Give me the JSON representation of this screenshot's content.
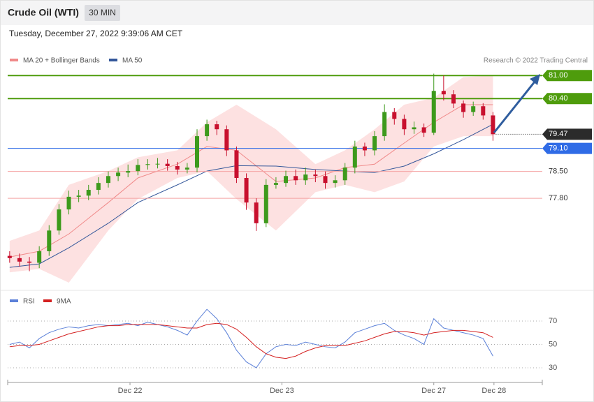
{
  "header": {
    "title": "Crude Oil (WTI)",
    "timeframe": "30 MIN",
    "timestamp": "Tuesday, December 27, 2022 9:39:06 AM CET"
  },
  "chart_data": [
    {
      "type": "candlestick",
      "annotation": "Research © 2022 Trading Central",
      "up_color": "#3d9a1c",
      "down_color": "#c8102e",
      "xlim": [
        -0.2,
        54
      ],
      "ylim": [
        75.51,
        81.15
      ],
      "open": [
        76.3,
        76.24,
        76.15,
        76.12,
        76.42,
        76.96,
        77.51,
        77.84,
        77.87,
        78.02,
        78.2,
        78.38,
        78.47,
        78.51,
        78.67,
        78.69,
        78.7,
        78.64,
        78.55,
        78.6,
        79.42,
        79.73,
        79.6,
        79.05,
        78.33,
        77.69,
        77.15,
        78.15,
        78.2,
        78.38,
        78.27,
        78.42,
        78.38,
        78.2,
        78.27,
        78.6,
        79.15,
        79.05,
        79.42,
        80.05,
        79.87,
        79.6,
        79.65,
        79.51,
        80.6,
        80.51,
        80.27,
        80.05,
        80.2,
        79.96
      ],
      "high": [
        76.42,
        76.36,
        76.27,
        76.55,
        77.1,
        77.65,
        78.0,
        78.02,
        78.15,
        78.35,
        78.5,
        78.6,
        78.68,
        78.82,
        78.82,
        78.85,
        78.82,
        78.75,
        78.72,
        79.6,
        79.85,
        79.82,
        79.7,
        79.15,
        78.45,
        77.8,
        78.3,
        78.35,
        78.52,
        78.55,
        78.6,
        78.55,
        78.5,
        78.4,
        78.72,
        79.3,
        79.25,
        79.55,
        80.25,
        80.15,
        79.98,
        79.8,
        79.75,
        81.05,
        81.0,
        80.62,
        80.35,
        80.32,
        80.28,
        80.05
      ],
      "low": [
        76.12,
        76.02,
        75.9,
        75.98,
        76.3,
        76.85,
        77.38,
        77.7,
        77.75,
        77.9,
        78.08,
        78.25,
        78.35,
        78.4,
        78.55,
        78.58,
        78.52,
        78.42,
        78.45,
        78.48,
        79.3,
        79.45,
        78.9,
        78.2,
        77.5,
        76.95,
        77.05,
        78.05,
        78.1,
        78.15,
        78.15,
        78.22,
        78.05,
        78.08,
        78.15,
        78.45,
        78.9,
        78.92,
        79.3,
        79.72,
        79.45,
        79.48,
        79.4,
        79.45,
        80.35,
        80.15,
        79.9,
        79.95,
        79.85,
        79.3
      ],
      "close": [
        76.24,
        76.15,
        76.12,
        76.42,
        76.96,
        77.51,
        77.84,
        77.87,
        78.02,
        78.2,
        78.38,
        78.47,
        78.51,
        78.67,
        78.69,
        78.7,
        78.64,
        78.55,
        78.6,
        79.42,
        79.73,
        79.6,
        79.05,
        78.33,
        77.69,
        77.15,
        78.15,
        78.2,
        78.38,
        78.27,
        78.42,
        78.38,
        78.2,
        78.27,
        78.6,
        79.15,
        79.05,
        79.42,
        80.05,
        79.87,
        79.6,
        79.65,
        79.51,
        80.6,
        80.51,
        80.27,
        80.05,
        80.2,
        79.96,
        79.47
      ],
      "overlay_x": [
        0,
        3,
        6,
        10,
        13,
        17,
        20,
        23,
        27,
        31,
        34,
        37,
        40,
        43,
        46,
        49
      ],
      "bands": {
        "name": "MA 20 + Bollinger Bands",
        "color": "#f08a8a",
        "fill": "#fde1e1",
        "upper": [
          76.69,
          76.96,
          78.15,
          78.51,
          78.87,
          79.05,
          79.78,
          80.24,
          79.6,
          78.69,
          79.05,
          79.6,
          80.24,
          80.42,
          80.96,
          81.0
        ],
        "middle": [
          76.27,
          76.42,
          76.87,
          77.69,
          78.33,
          78.69,
          79.15,
          79.05,
          78.24,
          78.33,
          78.6,
          78.69,
          79.24,
          79.78,
          80.24,
          80.24
        ],
        "lower": [
          75.87,
          75.96,
          75.6,
          76.96,
          77.78,
          78.33,
          78.51,
          77.78,
          76.96,
          77.96,
          78.15,
          77.96,
          78.24,
          79.15,
          79.42,
          79.42
        ]
      },
      "ma50": {
        "name": "MA 50",
        "color": "#34579a",
        "values": [
          76.0,
          76.09,
          76.51,
          77.15,
          77.69,
          78.15,
          78.51,
          78.65,
          78.64,
          78.55,
          78.51,
          78.47,
          78.64,
          78.96,
          79.33,
          79.73
        ]
      },
      "levels": [
        {
          "value": 81,
          "label": "81.00",
          "color": "#4e9c0c",
          "style": "tag"
        },
        {
          "value": 80.4,
          "label": "80.40",
          "color": "#4e9c0c",
          "style": "tag"
        },
        {
          "value": 79.47,
          "label": "79.47",
          "color": "#2b2b2b",
          "style": "last"
        },
        {
          "value": 79.1,
          "label": "79.10",
          "color": "#2f6be6",
          "style": "tag"
        },
        {
          "value": 78.5,
          "label": "78.50",
          "color": "#e02020",
          "style": "text"
        },
        {
          "value": 77.8,
          "label": "77.80",
          "color": "#e02020",
          "style": "text"
        }
      ]
    },
    {
      "type": "line",
      "xlim": [
        -0.2,
        54
      ],
      "ylim": [
        19.25,
        81.9
      ],
      "yticks": [
        30,
        50,
        70
      ],
      "xticks": [
        {
          "value": 12.2,
          "label": "Dec 22"
        },
        {
          "value": 27.6,
          "label": "Dec 23"
        },
        {
          "value": 43,
          "label": "Dec 27"
        },
        {
          "value": 49.1,
          "label": "Dec 28"
        }
      ],
      "series": [
        {
          "name": "RSI",
          "color": "#5b80d8",
          "values": [
            50,
            52,
            47,
            55,
            60,
            63,
            65,
            64,
            66,
            67,
            66,
            67,
            68,
            66,
            69,
            67,
            65,
            62,
            58,
            70,
            80,
            72,
            60,
            45,
            35,
            30,
            42,
            48,
            50,
            49,
            52,
            50,
            48,
            47,
            52,
            60,
            63,
            66,
            68,
            62,
            58,
            55,
            50,
            72,
            64,
            62,
            60,
            58,
            55,
            40
          ]
        },
        {
          "name": "9MA",
          "color": "#d42020",
          "values": [
            48,
            49,
            49,
            50,
            53,
            56,
            59,
            61,
            63,
            65,
            66,
            66,
            67,
            67,
            67,
            67,
            66,
            65,
            64,
            64,
            67,
            68,
            67,
            63,
            56,
            48,
            42,
            39,
            38,
            40,
            44,
            47,
            49,
            49,
            49,
            51,
            53,
            56,
            59,
            61,
            61,
            60,
            58,
            60,
            61,
            62,
            62,
            61,
            60,
            56
          ]
        }
      ]
    }
  ]
}
